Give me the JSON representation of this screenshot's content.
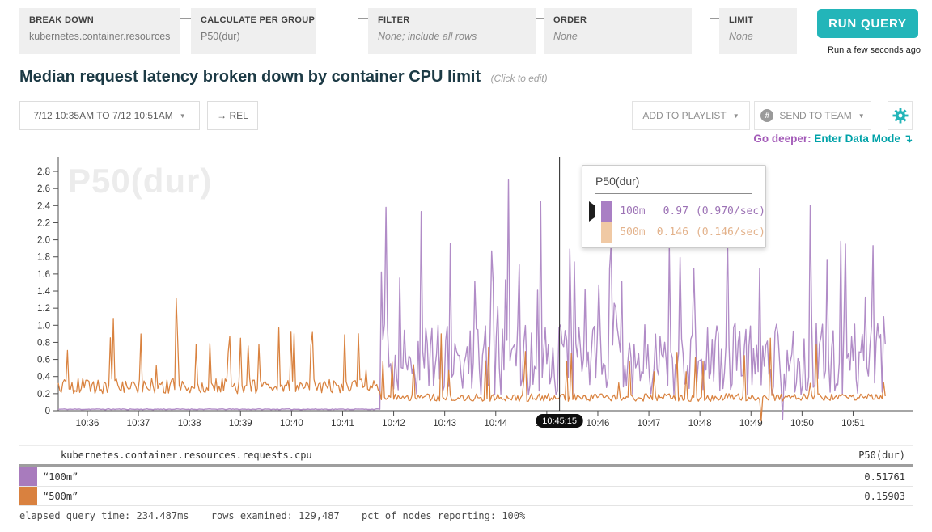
{
  "query_builder": {
    "boxes": [
      {
        "label": "BREAK DOWN",
        "value": "kubernetes.container.resources.req",
        "italic": false
      },
      {
        "label": "CALCULATE PER GROUP",
        "value": "P50(dur)",
        "italic": false
      },
      {
        "label": "FILTER",
        "value": "None; include all rows",
        "italic": true
      },
      {
        "label": "ORDER",
        "value": "None",
        "italic": true
      },
      {
        "label": "LIMIT",
        "value": "None",
        "italic": true
      }
    ],
    "run_button": "RUN QUERY",
    "run_status": "Run a few seconds ago"
  },
  "header": {
    "title": "Median request latency broken down by container CPU limit",
    "subtitle": "(Click to edit)"
  },
  "toolbar": {
    "time_range": "7/12 10:35AM TO 7/12 10:51AM",
    "rel_button": "→ REL",
    "add_to_playlist": "ADD TO PLAYLIST",
    "send_to_team": "SEND TO TEAM",
    "go_deeper_label": "Go deeper:",
    "go_deeper_link": "Enter Data Mode",
    "go_deeper_arrow": "↴"
  },
  "icons": {
    "chevron_down": "▼",
    "team_badge": "#"
  },
  "colors": {
    "accent_teal": "#23b5b9",
    "purple_series": "#b18cc7",
    "orange_series": "#d9823f"
  },
  "tooltip": {
    "title": "P50(dur)",
    "rows": [
      {
        "name": "100m",
        "value": "0.97",
        "rate": "(0.970/sec)",
        "swatch": "#a97fc4"
      },
      {
        "name": "500m",
        "value": "0.146",
        "rate": "(0.146/sec)",
        "swatch": "#f0c9a4"
      }
    ]
  },
  "chart": {
    "watermark": "P50(dur)"
  },
  "chart_data": {
    "type": "line",
    "title": "P50(dur)",
    "x_start_min": 35.43,
    "x_end_min": 51.65,
    "ylim": [
      0,
      2.96
    ],
    "grid": false,
    "crosshair": {
      "t": 45.25,
      "label": "10:45:15"
    },
    "y_ticks": [
      {
        "v": 0,
        "label": "0"
      },
      {
        "v": 0.2,
        "label": "0.2"
      },
      {
        "v": 0.4,
        "label": "0.4"
      },
      {
        "v": 0.6,
        "label": "0.6"
      },
      {
        "v": 0.8,
        "label": "0.8"
      },
      {
        "v": 1.0,
        "label": "1.0"
      },
      {
        "v": 1.2,
        "label": "1.2"
      },
      {
        "v": 1.4,
        "label": "1.4"
      },
      {
        "v": 1.6,
        "label": "1.6"
      },
      {
        "v": 1.8,
        "label": "1.8"
      },
      {
        "v": 2.0,
        "label": "2.0"
      },
      {
        "v": 2.2,
        "label": "2.2"
      },
      {
        "v": 2.4,
        "label": "2.4"
      },
      {
        "v": 2.6,
        "label": "2.6"
      },
      {
        "v": 2.8,
        "label": "2.8"
      }
    ],
    "x_ticks": [
      {
        "t": 36,
        "label": "10:36"
      },
      {
        "t": 37,
        "label": "10:37"
      },
      {
        "t": 38,
        "label": "10:38"
      },
      {
        "t": 39,
        "label": "10:39"
      },
      {
        "t": 40,
        "label": "10:40"
      },
      {
        "t": 41,
        "label": "10:41"
      },
      {
        "t": 42,
        "label": "10:42"
      },
      {
        "t": 43,
        "label": "10:43"
      },
      {
        "t": 44,
        "label": "10:44"
      },
      {
        "t": 45,
        "label": "10:45"
      },
      {
        "t": 46,
        "label": "10:46"
      },
      {
        "t": 47,
        "label": "10:47"
      },
      {
        "t": 48,
        "label": "10:48"
      },
      {
        "t": 49,
        "label": "10:49"
      },
      {
        "t": 50,
        "label": "10:50"
      },
      {
        "t": 51,
        "label": "10:51"
      }
    ],
    "series": [
      {
        "name": "100m",
        "color": "#b18cc7",
        "seed": 11,
        "segments": [
          {
            "t0": 35.43,
            "t1": 41.75,
            "base": 0.012,
            "noise": 0.01,
            "spike_p": 0,
            "spike_lo": 0,
            "spike_hi": 0
          },
          {
            "t0": 41.75,
            "t1": 51.66,
            "base": 0.18,
            "noise": 0.85,
            "spike_p": 0.07,
            "spike_lo": 1.2,
            "spike_hi": 2.0
          }
        ],
        "peaks": [
          [
            41.86,
            2.38
          ],
          [
            42.53,
            2.33
          ],
          [
            44.24,
            2.7
          ],
          [
            44.88,
            2.45
          ],
          [
            45.25,
            0.97
          ],
          [
            46.25,
            1.95
          ],
          [
            47.41,
            1.92
          ],
          [
            48.55,
            2.1
          ],
          [
            49.63,
            -0.1
          ],
          [
            50.17,
            2.4
          ],
          [
            50.85,
            1.95
          ],
          [
            51.61,
            1.1
          ]
        ]
      },
      {
        "name": "500m",
        "color": "#d9823f",
        "seed": 5,
        "segments": [
          {
            "t0": 35.43,
            "t1": 41.75,
            "base": 0.2,
            "noise": 0.18,
            "spike_p": 0.06,
            "spike_lo": 0.45,
            "spike_hi": 1.0
          },
          {
            "t0": 41.75,
            "t1": 51.66,
            "base": 0.11,
            "noise": 0.09,
            "spike_p": 0.05,
            "spike_lo": 0.28,
            "spike_hi": 0.8
          }
        ],
        "peaks": [
          [
            36.51,
            1.08
          ],
          [
            37.73,
            1.32
          ],
          [
            38.14,
            0.78
          ],
          [
            39.01,
            0.85
          ],
          [
            39.76,
            0.97
          ],
          [
            39.99,
            0.92
          ],
          [
            42.93,
            0.9
          ],
          [
            45.25,
            0.146
          ],
          [
            45.38,
            0.58
          ],
          [
            47.92,
            0.62
          ],
          [
            49.19,
            -0.12
          ],
          [
            49.38,
            0.85
          ]
        ]
      }
    ]
  },
  "table": {
    "group_header": "kubernetes.container.resources.requests.cpu",
    "value_header": "P50(dur)",
    "rows": [
      {
        "name": "“100m”",
        "value": "0.51761",
        "color": "#a87bbd"
      },
      {
        "name": "“500m”",
        "value": "0.15903",
        "color": "#d9813f"
      }
    ]
  },
  "footer": {
    "elapsed": "elapsed query time: 234.487ms",
    "rows": "rows examined: 129,487",
    "pct": "pct of nodes reporting: 100%"
  }
}
